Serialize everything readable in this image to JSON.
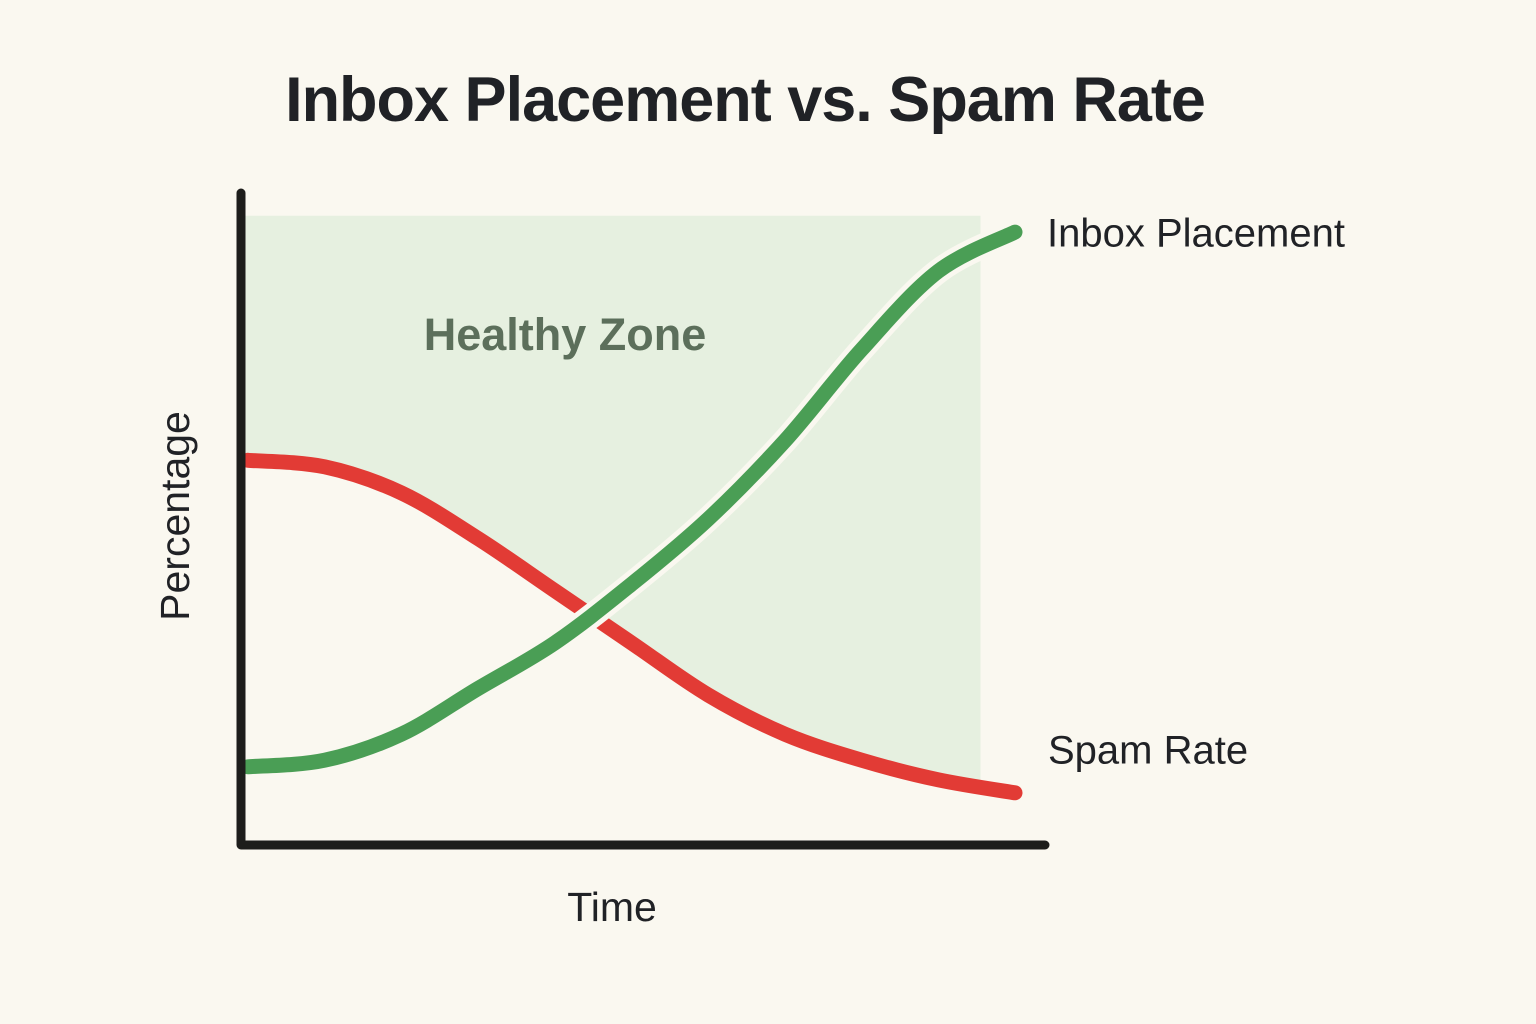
{
  "page": {
    "background_color": "#faf8f0"
  },
  "title": {
    "text": "Inbox Placement vs. Spam Rate",
    "color": "#202226"
  },
  "chart": {
    "x_label": "Time",
    "y_label": "Percentage",
    "axis_color": "#1d1d1b",
    "zone": {
      "label": "Healthy Zone",
      "fill": "#e6f0e0",
      "label_color": "#5c6f5b",
      "time_end": 9.55,
      "pct_top": 96.5
    },
    "series_meta": {
      "inbox": {
        "label": "Inbox Placement",
        "color": "#4a9e55"
      },
      "spam": {
        "label": "Spam Rate",
        "color": "#e23b35"
      }
    }
  },
  "chart_data": {
    "type": "line",
    "title": "Inbox Placement vs. Spam Rate",
    "xlabel": "Time",
    "ylabel": "Percentage",
    "x": [
      0,
      1,
      2,
      3,
      4,
      5,
      6,
      7,
      8,
      9,
      10
    ],
    "xlim": [
      0,
      10
    ],
    "ylim": [
      0,
      100
    ],
    "grid": false,
    "x_ticks_shown": false,
    "y_ticks_shown": false,
    "legend_position": "right-of-line-ends",
    "series": [
      {
        "name": "Inbox Placement",
        "color": "#4a9e55",
        "shape": "rising sigmoid",
        "values": [
          12,
          13,
          17,
          24,
          31,
          40,
          50,
          62,
          76,
          88,
          94
        ]
      },
      {
        "name": "Spam Rate",
        "color": "#e23b35",
        "shape": "falling sigmoid",
        "values": [
          59,
          58,
          54,
          47,
          39,
          31,
          23,
          17,
          13,
          10,
          8
        ]
      }
    ],
    "annotations": [
      {
        "text": "Healthy Zone",
        "description": "light green shaded region above the Spam Rate curve, from time 0 to ~9.55, up to ~96.5%"
      }
    ]
  }
}
